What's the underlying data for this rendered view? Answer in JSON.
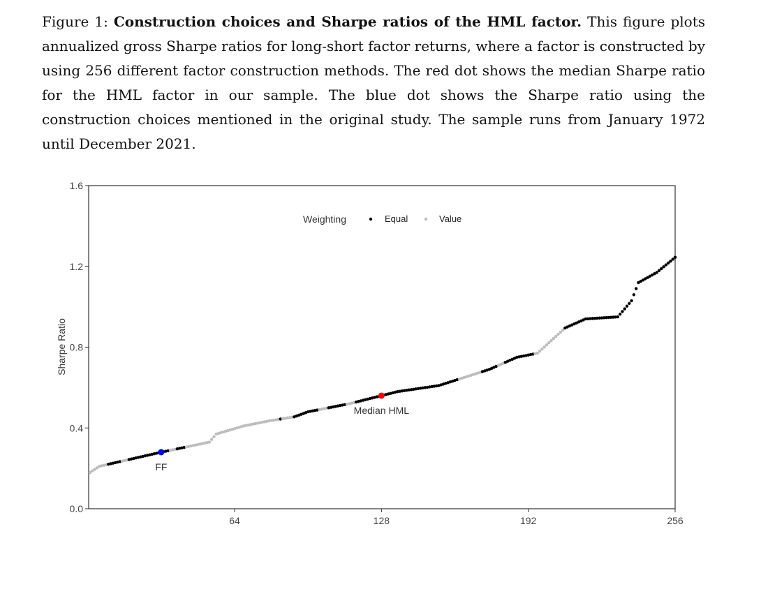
{
  "caption": {
    "label": "Figure 1:",
    "title": "Construction choices and Sharpe ratios of the HML factor.",
    "text": "This figure plots annualized gross Sharpe ratios for long-short factor returns, where a factor is constructed by using 256 different factor construction methods. The red dot shows the median Sharpe ratio for the HML factor in our sample. The blue dot shows the Sharpe ratio using the construction choices mentioned in the original study. The sample runs from January 1972 until December 2021."
  },
  "chart_data": {
    "type": "scatter",
    "title": "",
    "xlabel": "",
    "ylabel": "Sharpe Ratio",
    "xlim": [
      1,
      256
    ],
    "ylim": [
      0,
      1.6
    ],
    "xticks": [
      "64",
      "128",
      "192",
      "256"
    ],
    "yticks": [
      "0.0",
      "0.4",
      "0.8",
      "1.2",
      "1.6"
    ],
    "grid": false,
    "legend": {
      "title": "Weighting",
      "position": "top-center",
      "entries": [
        {
          "name": "Equal",
          "color": "#000000"
        },
        {
          "name": "Value",
          "color": "#bdbdbd"
        }
      ]
    },
    "curve_points": [
      [
        1,
        0.18
      ],
      [
        5,
        0.21
      ],
      [
        32,
        0.28
      ],
      [
        53,
        0.33
      ],
      [
        56,
        0.37
      ],
      [
        68,
        0.41
      ],
      [
        79,
        0.435
      ],
      [
        90,
        0.455
      ],
      [
        96,
        0.48
      ],
      [
        114,
        0.52
      ],
      [
        128,
        0.56
      ],
      [
        135,
        0.58
      ],
      [
        153,
        0.61
      ],
      [
        175,
        0.69
      ],
      [
        187,
        0.75
      ],
      [
        196,
        0.77
      ],
      [
        208,
        0.895
      ],
      [
        217,
        0.94
      ],
      [
        231,
        0.95
      ],
      [
        237,
        1.03
      ],
      [
        240,
        1.12
      ],
      [
        248,
        1.17
      ],
      [
        256,
        1.245
      ]
    ],
    "weighting_runs": [
      [
        1,
        8,
        "Value"
      ],
      [
        9,
        14,
        "Equal"
      ],
      [
        15,
        17,
        "Value"
      ],
      [
        18,
        35,
        "Equal"
      ],
      [
        36,
        38,
        "Value"
      ],
      [
        39,
        42,
        "Equal"
      ],
      [
        43,
        83,
        "Value"
      ],
      [
        84,
        84,
        "Equal"
      ],
      [
        85,
        89,
        "Value"
      ],
      [
        90,
        100,
        "Equal"
      ],
      [
        101,
        104,
        "Value"
      ],
      [
        105,
        112,
        "Equal"
      ],
      [
        113,
        116,
        "Value"
      ],
      [
        117,
        161,
        "Equal"
      ],
      [
        162,
        171,
        "Value"
      ],
      [
        172,
        178,
        "Equal"
      ],
      [
        179,
        181,
        "Value"
      ],
      [
        182,
        194,
        "Equal"
      ],
      [
        195,
        207,
        "Value"
      ],
      [
        208,
        256,
        "Equal"
      ]
    ],
    "annotations": [
      {
        "label": "FF",
        "rank": 32,
        "value": 0.28,
        "color": "#0000ff"
      },
      {
        "label": "Median HML",
        "rank": 128,
        "value": 0.56,
        "color": "#ff0000"
      }
    ]
  }
}
